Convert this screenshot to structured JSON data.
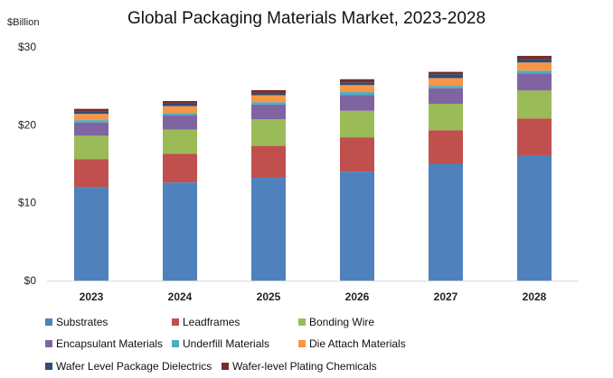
{
  "chart_data": {
    "type": "bar",
    "stacked": true,
    "title": "Global Packaging Materials Market, 2023-2028",
    "ylabel": "$Billion",
    "xlabel": "",
    "ylim": [
      0,
      30
    ],
    "yticks": [
      "$0",
      "$10",
      "$20",
      "$30"
    ],
    "ytick_values": [
      0,
      10,
      20,
      30
    ],
    "grid": false,
    "legend_position": "bottom",
    "categories": [
      "2023",
      "2024",
      "2025",
      "2026",
      "2027",
      "2028"
    ],
    "series": [
      {
        "name": "Substrates",
        "color": "#4f81bd",
        "values": [
          12.0,
          12.6,
          13.2,
          14.0,
          15.0,
          16.1
        ]
      },
      {
        "name": "Leadframes",
        "color": "#c0504d",
        "values": [
          3.6,
          3.7,
          4.1,
          4.4,
          4.3,
          4.7
        ]
      },
      {
        "name": "Bonding Wire",
        "color": "#9bbb59",
        "values": [
          3.0,
          3.1,
          3.4,
          3.4,
          3.4,
          3.6
        ]
      },
      {
        "name": "Encapsulant Materials",
        "color": "#8064a2",
        "values": [
          1.7,
          1.8,
          1.9,
          2.0,
          2.0,
          2.2
        ]
      },
      {
        "name": "Underfill Materials",
        "color": "#4bacc6",
        "values": [
          0.3,
          0.3,
          0.3,
          0.4,
          0.3,
          0.35
        ]
      },
      {
        "name": "Die Attach Materials",
        "color": "#f79646",
        "values": [
          0.8,
          0.9,
          0.9,
          0.9,
          1.0,
          1.05
        ]
      },
      {
        "name": "Wafer Level Package Dielectrics",
        "color": "#2c4d75",
        "values": [
          0.3,
          0.35,
          0.3,
          0.35,
          0.5,
          0.45
        ]
      },
      {
        "name": "Wafer-level Plating Chemicals",
        "color": "#772c2a",
        "values": [
          0.35,
          0.3,
          0.35,
          0.4,
          0.3,
          0.4
        ]
      }
    ]
  }
}
